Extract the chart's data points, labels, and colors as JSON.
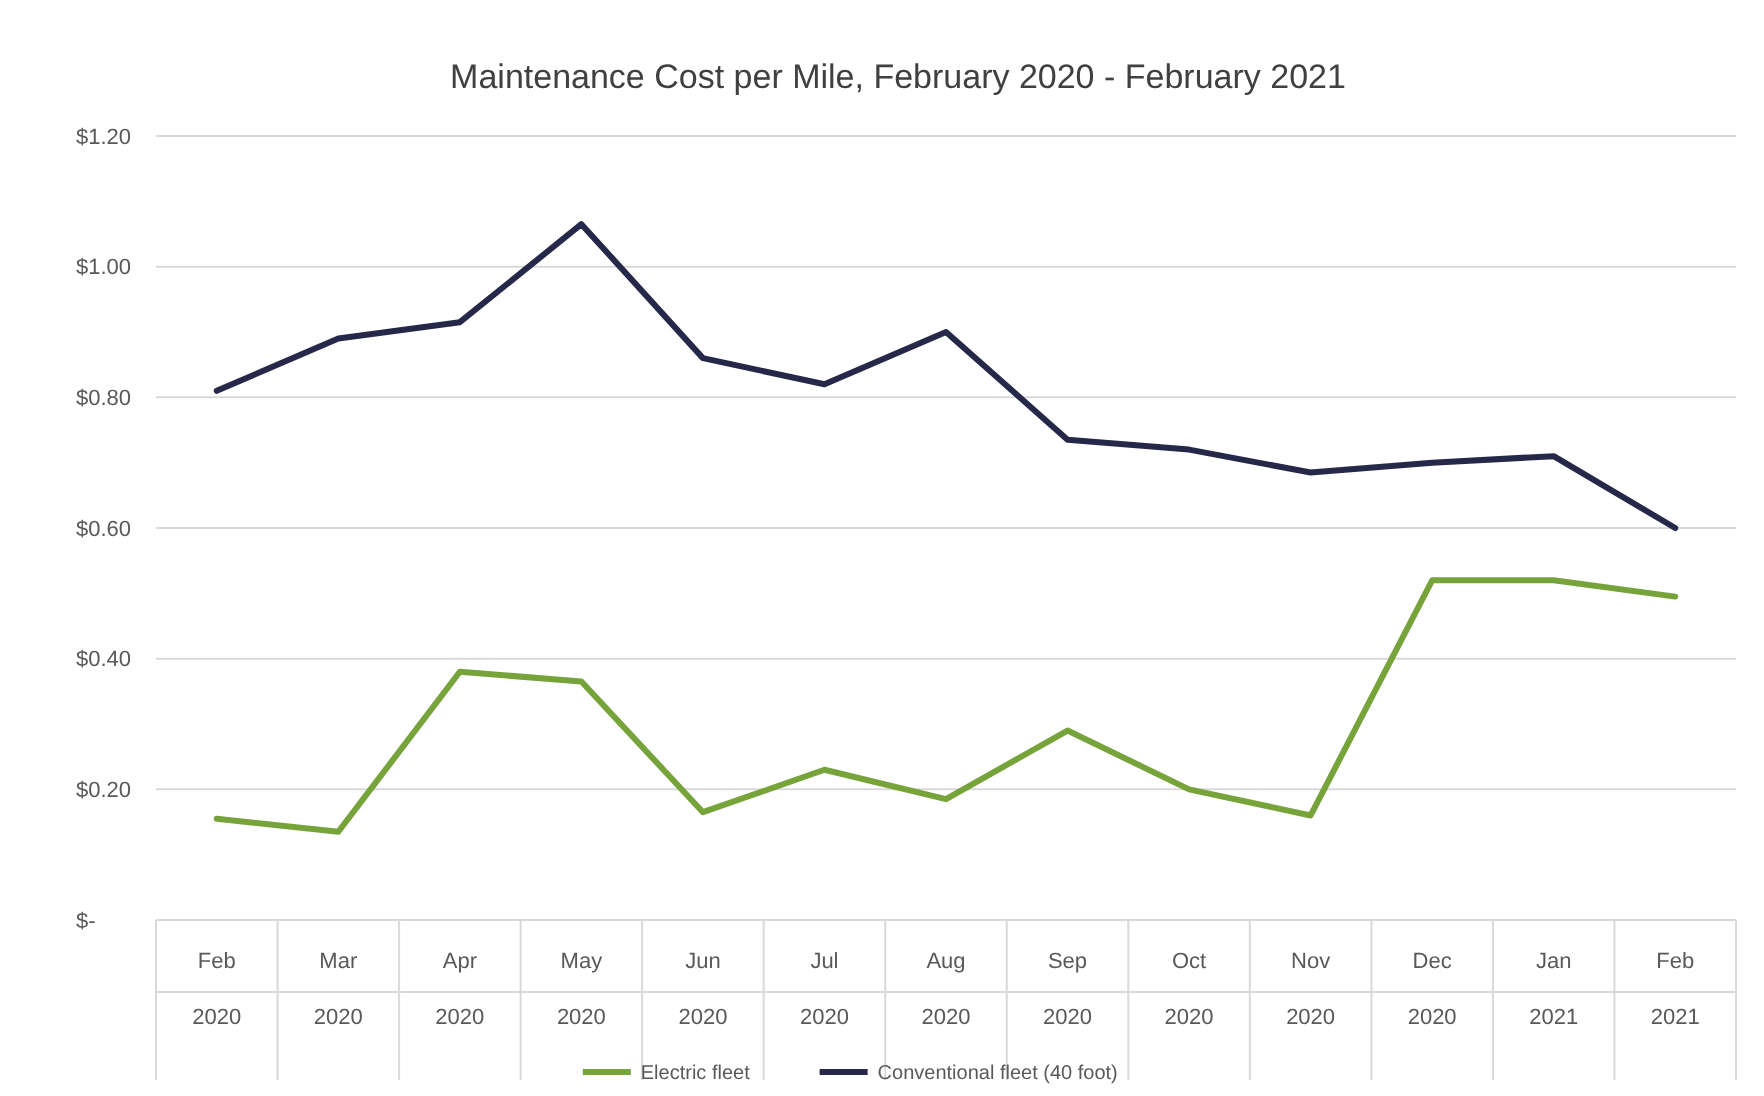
{
  "chart_data": {
    "type": "line",
    "title": "Maintenance Cost per Mile, February 2020 - February 2021",
    "categories": [
      "Feb 2020",
      "Mar 2020",
      "Apr 2020",
      "May 2020",
      "Jun 2020",
      "Jul 2020",
      "Aug 2020",
      "Sep 2020",
      "Oct 2020",
      "Nov 2020",
      "Dec 2020",
      "Jan 2021",
      "Feb 2021"
    ],
    "series": [
      {
        "name": "Electric fleet",
        "color": "#77a33b",
        "values": [
          0.155,
          0.135,
          0.38,
          0.365,
          0.165,
          0.23,
          0.185,
          0.29,
          0.2,
          0.16,
          0.52,
          0.52,
          0.495
        ]
      },
      {
        "name": "Conventional fleet (40 foot)",
        "color": "#26284a",
        "values": [
          0.81,
          0.89,
          0.915,
          1.065,
          0.86,
          0.82,
          0.9,
          0.735,
          0.72,
          0.685,
          0.7,
          0.71,
          0.6
        ]
      }
    ],
    "ylim": [
      0,
      1.2
    ],
    "yticks": [
      {
        "value": 0,
        "label": "$-"
      },
      {
        "value": 0.2,
        "label": "$0.20"
      },
      {
        "value": 0.4,
        "label": "$0.40"
      },
      {
        "value": 0.6,
        "label": "$0.60"
      },
      {
        "value": 0.8,
        "label": "$0.80"
      },
      {
        "value": 1,
        "label": "$1.00"
      },
      {
        "value": 1.2,
        "label": "$1.20"
      }
    ],
    "grid": "y",
    "legend": "bottom",
    "marker": "none",
    "line_style": "solid"
  }
}
